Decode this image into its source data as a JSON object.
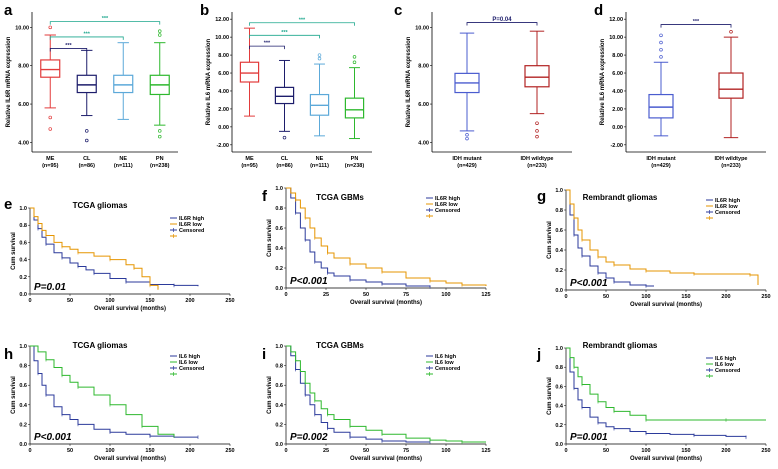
{
  "figure": {
    "description_labels": [
      "a",
      "b",
      "c",
      "d",
      "e",
      "f",
      "g",
      "h",
      "i",
      "j"
    ]
  },
  "colors": {
    "ME": "#e23b3b",
    "CL": "#1d1d6b",
    "NE": "#5ca9d9",
    "PN": "#2eb82e",
    "IDH_mutant": "#4a5ccf",
    "IDH_wildtype": "#b22222",
    "high": "#2b3a9b",
    "low_orange": "#e69500",
    "low_green": "#2eb82e",
    "sig_teal": "#1aa68c",
    "sig_navy": "#1d1d6b"
  },
  "chart_data": [
    {
      "id": "a",
      "type": "box",
      "label": "a",
      "ylabel": "Relative IL6R mRNA expression",
      "yticks": [
        "4.00",
        "6.00",
        "8.00",
        "10.00"
      ],
      "ylim": [
        3.5,
        10.8
      ],
      "categories": [
        {
          "name": "ME",
          "n": "(n=95)",
          "color": "ME",
          "min": 5.8,
          "q1": 7.4,
          "median": 7.8,
          "q3": 8.3,
          "max": 9.6,
          "outliers": [
            5.3,
            4.7,
            10.0
          ]
        },
        {
          "name": "CL",
          "n": "(n=86)",
          "color": "CL",
          "min": 5.4,
          "q1": 6.6,
          "median": 7.0,
          "q3": 7.5,
          "max": 8.8,
          "outliers": [
            4.6,
            4.1
          ]
        },
        {
          "name": "NE",
          "n": "(n=111)",
          "color": "NE",
          "min": 5.2,
          "q1": 6.6,
          "median": 7.0,
          "q3": 7.5,
          "max": 9.2,
          "outliers": []
        },
        {
          "name": "PN",
          "n": "(n=238)",
          "color": "PN",
          "min": 4.9,
          "q1": 6.5,
          "median": 7.0,
          "q3": 7.5,
          "max": 9.2,
          "outliers": [
            4.6,
            4.3,
            9.6,
            9.8
          ]
        }
      ],
      "sig": [
        {
          "from": 0,
          "to": 1,
          "text": "***",
          "color": "sig_navy",
          "y": 8.9
        },
        {
          "from": 0,
          "to": 2,
          "text": "***",
          "color": "sig_teal",
          "y": 9.5
        },
        {
          "from": 0,
          "to": 3,
          "text": "***",
          "color": "sig_teal",
          "y": 10.3
        }
      ]
    },
    {
      "id": "b",
      "type": "box",
      "label": "b",
      "ylabel": "Relative IL6 mRNA expression",
      "yticks": [
        "-2.00",
        "0.00",
        "2.00",
        "4.00",
        "6.00",
        "8.00",
        "10.00",
        "12.00"
      ],
      "ylim": [
        -2.8,
        12.8
      ],
      "categories": [
        {
          "name": "ME",
          "n": "(n=95)",
          "color": "ME",
          "min": 1.2,
          "q1": 5.0,
          "median": 6.0,
          "q3": 7.2,
          "max": 11.0,
          "outliers": []
        },
        {
          "name": "CL",
          "n": "(n=86)",
          "color": "CL",
          "min": -0.5,
          "q1": 2.6,
          "median": 3.4,
          "q3": 4.4,
          "max": 7.4,
          "outliers": [
            -1.2
          ]
        },
        {
          "name": "NE",
          "n": "(n=111)",
          "color": "NE",
          "min": -1.0,
          "q1": 1.3,
          "median": 2.4,
          "q3": 3.6,
          "max": 7.0,
          "outliers": [
            7.6,
            8.0
          ]
        },
        {
          "name": "PN",
          "n": "(n=238)",
          "color": "PN",
          "min": -1.3,
          "q1": 1.0,
          "median": 1.9,
          "q3": 3.2,
          "max": 6.6,
          "outliers": [
            7.2,
            7.8
          ]
        }
      ],
      "sig": [
        {
          "from": 0,
          "to": 1,
          "text": "***",
          "color": "sig_navy",
          "y": 9.0
        },
        {
          "from": 0,
          "to": 2,
          "text": "***",
          "color": "sig_teal",
          "y": 10.2
        },
        {
          "from": 0,
          "to": 3,
          "text": "***",
          "color": "sig_teal",
          "y": 11.6
        }
      ]
    },
    {
      "id": "c",
      "type": "box",
      "label": "c",
      "ylabel": "Relative IL6R mRNA expression",
      "yticks": [
        "4.00",
        "6.00",
        "8.00",
        "10.00"
      ],
      "ylim": [
        3.5,
        10.8
      ],
      "categories": [
        {
          "name": "IDH mutant",
          "n": "(n=429)",
          "color": "IDH_mutant",
          "min": 4.6,
          "q1": 6.6,
          "median": 7.1,
          "q3": 7.6,
          "max": 9.7,
          "outliers": [
            4.2,
            4.4
          ]
        },
        {
          "name": "IDH wildtype",
          "n": "(n=233)",
          "color": "IDH_wildtype",
          "min": 5.5,
          "q1": 6.9,
          "median": 7.4,
          "q3": 8.0,
          "max": 9.8,
          "outliers": [
            4.3,
            4.6,
            5.0
          ]
        }
      ],
      "sig": [
        {
          "from": 0,
          "to": 1,
          "text": "P=0.04",
          "color": "sig_navy",
          "y": 10.25
        }
      ]
    },
    {
      "id": "d",
      "type": "box",
      "label": "d",
      "ylabel": "Relative IL6 mRNA expression",
      "yticks": [
        "-2.00",
        "0.00",
        "2.00",
        "4.00",
        "6.00",
        "8.00",
        "10.00",
        "12.00"
      ],
      "ylim": [
        -2.8,
        12.8
      ],
      "categories": [
        {
          "name": "IDH mutant",
          "n": "(n=429)",
          "color": "IDH_mutant",
          "min": -1.0,
          "q1": 1.0,
          "median": 2.2,
          "q3": 3.6,
          "max": 7.2,
          "outliers": [
            7.8,
            8.6,
            9.4,
            10.2
          ]
        },
        {
          "name": "IDH wildtype",
          "n": "(n=233)",
          "color": "IDH_wildtype",
          "min": -1.2,
          "q1": 3.2,
          "median": 4.2,
          "q3": 6.0,
          "max": 10.0,
          "outliers": [
            10.6
          ]
        }
      ],
      "sig": [
        {
          "from": 0,
          "to": 1,
          "text": "***",
          "color": "sig_navy",
          "y": 11.4
        }
      ]
    },
    {
      "id": "e",
      "type": "line",
      "label": "e",
      "title": "TCGA gliomas",
      "xlabel": "Overall survival (months)",
      "ylabel": "Cum survival",
      "xlim": [
        0,
        250
      ],
      "xticks": [
        0,
        50,
        100,
        150,
        200,
        250
      ],
      "ylim": [
        0,
        1
      ],
      "yticks": [
        "0.0",
        "0.2",
        "0.4",
        "0.6",
        "0.8",
        "1.0"
      ],
      "pvalue": "P=0.01",
      "legend": [
        "IL6R high",
        "IL6R low",
        "Censored",
        ""
      ],
      "series": [
        {
          "name": "IL6R high",
          "color": "high",
          "x": [
            0,
            5,
            10,
            15,
            20,
            30,
            40,
            50,
            60,
            70,
            80,
            100,
            120,
            150,
            180,
            210
          ],
          "y": [
            1.0,
            0.86,
            0.76,
            0.66,
            0.58,
            0.48,
            0.42,
            0.36,
            0.32,
            0.28,
            0.24,
            0.18,
            0.14,
            0.11,
            0.1,
            0.09
          ]
        },
        {
          "name": "IL6R low",
          "color": "low_orange",
          "x": [
            0,
            5,
            10,
            15,
            20,
            30,
            40,
            50,
            60,
            80,
            100,
            120,
            130,
            140,
            150,
            160
          ],
          "y": [
            1.0,
            0.9,
            0.82,
            0.74,
            0.68,
            0.6,
            0.55,
            0.52,
            0.48,
            0.44,
            0.4,
            0.34,
            0.3,
            0.2,
            0.1,
            0.05
          ]
        }
      ]
    },
    {
      "id": "f",
      "type": "line",
      "label": "f",
      "title": "TCGA GBMs",
      "xlabel": "Overall survival (months)",
      "ylabel": "Cum survival",
      "xlim": [
        0,
        125
      ],
      "xticks": [
        0,
        25,
        50,
        75,
        100,
        125
      ],
      "ylim": [
        0,
        1
      ],
      "yticks": [
        "0.0",
        "0.2",
        "0.4",
        "0.6",
        "0.8",
        "1.0"
      ],
      "pvalue": "P<0.001",
      "legend": [
        "IL6R high",
        "IL6R low",
        "Censored",
        ""
      ],
      "series": [
        {
          "name": "IL6R high",
          "color": "high",
          "x": [
            0,
            3,
            6,
            9,
            12,
            15,
            18,
            22,
            26,
            30,
            40,
            50,
            60,
            75,
            90
          ],
          "y": [
            1.0,
            0.9,
            0.75,
            0.6,
            0.48,
            0.36,
            0.26,
            0.2,
            0.15,
            0.12,
            0.08,
            0.06,
            0.04,
            0.02,
            0.01
          ]
        },
        {
          "name": "IL6R low",
          "color": "low_orange",
          "x": [
            0,
            3,
            6,
            9,
            12,
            15,
            18,
            22,
            26,
            30,
            40,
            50,
            60,
            75,
            90,
            100,
            110,
            125
          ],
          "y": [
            1.0,
            0.95,
            0.88,
            0.8,
            0.7,
            0.6,
            0.5,
            0.42,
            0.35,
            0.3,
            0.24,
            0.2,
            0.16,
            0.1,
            0.07,
            0.05,
            0.03,
            0.02
          ]
        }
      ]
    },
    {
      "id": "g",
      "type": "line",
      "label": "g",
      "title": "Rembrandt gliomas",
      "xlabel": "Overall survival (months)",
      "ylabel": "Cum survival",
      "xlim": [
        0,
        250
      ],
      "xticks": [
        0,
        50,
        100,
        150,
        200,
        250
      ],
      "ylim": [
        0,
        1
      ],
      "yticks": [
        "0.0",
        "0.2",
        "0.4",
        "0.6",
        "0.8",
        "1.0"
      ],
      "pvalue": "P<0.001",
      "legend": [
        "IL6R high",
        "IL6R low",
        "Censored",
        ""
      ],
      "series": [
        {
          "name": "IL6R high",
          "color": "high",
          "x": [
            0,
            5,
            10,
            15,
            20,
            30,
            40,
            50,
            60,
            80,
            100,
            110
          ],
          "y": [
            1.0,
            0.75,
            0.55,
            0.42,
            0.34,
            0.24,
            0.17,
            0.12,
            0.08,
            0.05,
            0.04,
            0.04
          ]
        },
        {
          "name": "IL6R low",
          "color": "low_orange",
          "x": [
            0,
            5,
            10,
            15,
            20,
            30,
            40,
            50,
            60,
            80,
            100,
            130,
            160,
            200,
            230,
            240
          ],
          "y": [
            1.0,
            0.86,
            0.72,
            0.6,
            0.5,
            0.4,
            0.33,
            0.28,
            0.25,
            0.21,
            0.19,
            0.17,
            0.16,
            0.16,
            0.15,
            0.05
          ]
        }
      ]
    },
    {
      "id": "h",
      "type": "line",
      "label": "h",
      "title": "TCGA gliomas",
      "xlabel": "Overall survival (months)",
      "ylabel": "Cum survival",
      "xlim": [
        0,
        250
      ],
      "xticks": [
        0,
        50,
        100,
        150,
        200,
        250
      ],
      "ylim": [
        0,
        1
      ],
      "yticks": [
        "0.0",
        "0.2",
        "0.4",
        "0.6",
        "0.8",
        "1.0"
      ],
      "pvalue": "P<0.001",
      "legend": [
        "IL6 high",
        "IL6 low",
        "Censored",
        ""
      ],
      "series": [
        {
          "name": "IL6 high",
          "color": "high",
          "x": [
            0,
            5,
            10,
            15,
            20,
            30,
            40,
            50,
            60,
            80,
            100,
            120,
            150,
            180,
            210
          ],
          "y": [
            1.0,
            0.85,
            0.72,
            0.6,
            0.5,
            0.38,
            0.3,
            0.25,
            0.2,
            0.15,
            0.12,
            0.1,
            0.08,
            0.07,
            0.07
          ]
        },
        {
          "name": "IL6 low",
          "color": "low_green",
          "x": [
            0,
            10,
            20,
            30,
            40,
            50,
            60,
            80,
            100,
            120,
            140,
            160,
            180
          ],
          "y": [
            1.0,
            0.94,
            0.86,
            0.78,
            0.7,
            0.63,
            0.58,
            0.5,
            0.4,
            0.3,
            0.18,
            0.1,
            0.08
          ]
        }
      ]
    },
    {
      "id": "i",
      "type": "line",
      "label": "i",
      "title": "TCGA GBMs",
      "xlabel": "Overall survival (months)",
      "ylabel": "Cum survival",
      "xlim": [
        0,
        125
      ],
      "xticks": [
        0,
        25,
        50,
        75,
        100,
        125
      ],
      "ylim": [
        0,
        1
      ],
      "yticks": [
        "0.0",
        "0.2",
        "0.4",
        "0.6",
        "0.8",
        "1.0"
      ],
      "pvalue": "P=0.002",
      "legend": [
        "IL6 high",
        "IL6 low",
        "Censored",
        ""
      ],
      "series": [
        {
          "name": "IL6 high",
          "color": "high",
          "x": [
            0,
            3,
            6,
            9,
            12,
            15,
            18,
            22,
            26,
            30,
            40,
            50,
            60,
            75,
            90
          ],
          "y": [
            1.0,
            0.9,
            0.76,
            0.62,
            0.5,
            0.4,
            0.3,
            0.22,
            0.16,
            0.12,
            0.07,
            0.05,
            0.03,
            0.02,
            0.02
          ]
        },
        {
          "name": "IL6 low",
          "color": "low_green",
          "x": [
            0,
            3,
            6,
            9,
            12,
            15,
            18,
            22,
            26,
            30,
            40,
            50,
            60,
            75,
            90,
            100,
            110,
            125
          ],
          "y": [
            1.0,
            0.94,
            0.85,
            0.74,
            0.62,
            0.52,
            0.44,
            0.36,
            0.3,
            0.25,
            0.18,
            0.14,
            0.1,
            0.06,
            0.04,
            0.03,
            0.02,
            0.02
          ]
        }
      ]
    },
    {
      "id": "j",
      "type": "line",
      "label": "j",
      "title": "Rembrandt gliomas",
      "xlabel": "Overall survival (months)",
      "ylabel": "Cum survival",
      "xlim": [
        0,
        250
      ],
      "xticks": [
        0,
        50,
        100,
        150,
        200,
        250
      ],
      "ylim": [
        0,
        1
      ],
      "yticks": [
        "0.0",
        "0.2",
        "0.4",
        "0.6",
        "0.8",
        "1.0"
      ],
      "pvalue": "P=0.001",
      "legend": [
        "IL6 high",
        "IL6 low",
        "Censored",
        ""
      ],
      "series": [
        {
          "name": "IL6 high",
          "color": "high",
          "x": [
            0,
            5,
            10,
            15,
            20,
            30,
            40,
            50,
            60,
            80,
            100,
            130,
            160,
            200,
            225
          ],
          "y": [
            1.0,
            0.75,
            0.58,
            0.46,
            0.38,
            0.28,
            0.22,
            0.18,
            0.16,
            0.13,
            0.11,
            0.1,
            0.09,
            0.08,
            0.07
          ]
        },
        {
          "name": "IL6 low",
          "color": "low_green",
          "x": [
            0,
            5,
            10,
            15,
            20,
            30,
            40,
            50,
            60,
            80,
            100,
            150,
            200,
            250
          ],
          "y": [
            1.0,
            0.9,
            0.8,
            0.7,
            0.62,
            0.52,
            0.44,
            0.38,
            0.34,
            0.3,
            0.25,
            0.25,
            0.25,
            0.25
          ]
        }
      ]
    }
  ]
}
